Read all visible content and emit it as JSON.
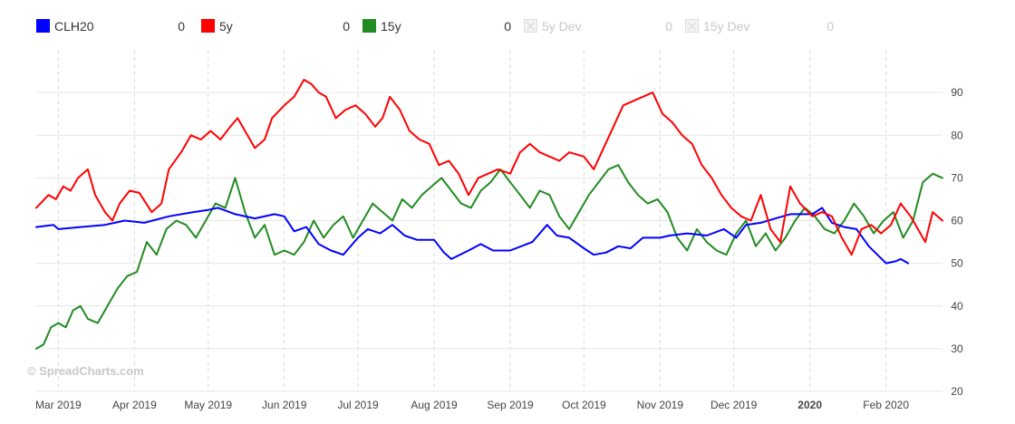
{
  "chart_data": {
    "type": "line",
    "watermark": "© SpreadCharts.com",
    "ylim": [
      20,
      100
    ],
    "y_ticks": [
      20,
      30,
      40,
      50,
      60,
      70,
      80,
      90
    ],
    "x_range": [
      "2019-02-20",
      "2020-02-24"
    ],
    "x_ticks": [
      {
        "label": "Mar 2019",
        "date": "2019-03-01",
        "bold": false
      },
      {
        "label": "Apr 2019",
        "date": "2019-04-01",
        "bold": false
      },
      {
        "label": "May 2019",
        "date": "2019-05-01",
        "bold": false
      },
      {
        "label": "Jun 2019",
        "date": "2019-06-01",
        "bold": false
      },
      {
        "label": "Jul 2019",
        "date": "2019-07-01",
        "bold": false
      },
      {
        "label": "Aug 2019",
        "date": "2019-08-01",
        "bold": false
      },
      {
        "label": "Sep 2019",
        "date": "2019-09-01",
        "bold": false
      },
      {
        "label": "Oct 2019",
        "date": "2019-10-01",
        "bold": false
      },
      {
        "label": "Nov 2019",
        "date": "2019-11-01",
        "bold": false
      },
      {
        "label": "Dec 2019",
        "date": "2019-12-01",
        "bold": false
      },
      {
        "label": "2020",
        "date": "2020-01-01",
        "bold": true
      },
      {
        "label": "Feb 2020",
        "date": "2020-02-01",
        "bold": false
      }
    ],
    "legend": [
      {
        "name": "CLH20",
        "value": "0",
        "color": "#0000ff",
        "enabled": true
      },
      {
        "name": "5y",
        "value": "0",
        "color": "#ff0000",
        "enabled": true
      },
      {
        "name": "15y",
        "value": "0",
        "color": "#228b22",
        "enabled": true
      },
      {
        "name": "5y Dev",
        "value": "0",
        "color": "#dddddd",
        "enabled": false
      },
      {
        "name": "15y Dev",
        "value": "0",
        "color": "#dddddd",
        "enabled": false
      }
    ],
    "series": [
      {
        "name": "CLH20",
        "color": "#0000ff",
        "points": [
          [
            "2019-02-20",
            58.5
          ],
          [
            "2019-02-27",
            59.0
          ],
          [
            "2019-03-01",
            58.0
          ],
          [
            "2019-03-10",
            58.5
          ],
          [
            "2019-03-20",
            59.0
          ],
          [
            "2019-03-28",
            60.0
          ],
          [
            "2019-04-05",
            59.5
          ],
          [
            "2019-04-15",
            61.0
          ],
          [
            "2019-04-25",
            62.0
          ],
          [
            "2019-05-01",
            62.5
          ],
          [
            "2019-05-05",
            63.0
          ],
          [
            "2019-05-12",
            61.5
          ],
          [
            "2019-05-20",
            60.5
          ],
          [
            "2019-05-28",
            61.5
          ],
          [
            "2019-06-01",
            61.0
          ],
          [
            "2019-06-05",
            57.5
          ],
          [
            "2019-06-10",
            58.5
          ],
          [
            "2019-06-15",
            54.5
          ],
          [
            "2019-06-20",
            53.0
          ],
          [
            "2019-06-25",
            52.0
          ],
          [
            "2019-07-01",
            56.0
          ],
          [
            "2019-07-05",
            58.0
          ],
          [
            "2019-07-10",
            57.0
          ],
          [
            "2019-07-15",
            59.0
          ],
          [
            "2019-07-20",
            56.5
          ],
          [
            "2019-07-25",
            55.5
          ],
          [
            "2019-08-01",
            55.5
          ],
          [
            "2019-08-05",
            52.5
          ],
          [
            "2019-08-08",
            51.0
          ],
          [
            "2019-08-15",
            53.0
          ],
          [
            "2019-08-20",
            54.5
          ],
          [
            "2019-08-25",
            53.0
          ],
          [
            "2019-09-01",
            53.0
          ],
          [
            "2019-09-10",
            55.0
          ],
          [
            "2019-09-16",
            59.0
          ],
          [
            "2019-09-20",
            56.5
          ],
          [
            "2019-09-25",
            56.0
          ],
          [
            "2019-10-01",
            53.5
          ],
          [
            "2019-10-05",
            52.0
          ],
          [
            "2019-10-10",
            52.5
          ],
          [
            "2019-10-15",
            54.0
          ],
          [
            "2019-10-20",
            53.5
          ],
          [
            "2019-10-25",
            56.0
          ],
          [
            "2019-11-01",
            56.0
          ],
          [
            "2019-11-05",
            56.5
          ],
          [
            "2019-11-12",
            57.0
          ],
          [
            "2019-11-20",
            56.5
          ],
          [
            "2019-11-27",
            58.0
          ],
          [
            "2019-12-02",
            56.0
          ],
          [
            "2019-12-06",
            59.0
          ],
          [
            "2019-12-12",
            59.5
          ],
          [
            "2019-12-18",
            60.5
          ],
          [
            "2019-12-24",
            61.5
          ],
          [
            "2020-01-02",
            61.5
          ],
          [
            "2020-01-06",
            63.0
          ],
          [
            "2020-01-10",
            59.5
          ],
          [
            "2020-01-15",
            58.5
          ],
          [
            "2020-01-20",
            58.0
          ],
          [
            "2020-01-25",
            54.0
          ],
          [
            "2020-02-01",
            50.0
          ],
          [
            "2020-02-05",
            50.5
          ],
          [
            "2020-02-07",
            51.0
          ],
          [
            "2020-02-10",
            50.0
          ]
        ]
      },
      {
        "name": "5y",
        "color": "#ff0000",
        "points": [
          [
            "2019-02-20",
            63.0
          ],
          [
            "2019-02-25",
            66.0
          ],
          [
            "2019-02-28",
            65.0
          ],
          [
            "2019-03-03",
            68.0
          ],
          [
            "2019-03-06",
            67.0
          ],
          [
            "2019-03-09",
            70.0
          ],
          [
            "2019-03-13",
            72.0
          ],
          [
            "2019-03-16",
            66.0
          ],
          [
            "2019-03-20",
            62.0
          ],
          [
            "2019-03-23",
            60.0
          ],
          [
            "2019-03-26",
            64.0
          ],
          [
            "2019-03-30",
            67.0
          ],
          [
            "2019-04-03",
            66.5
          ],
          [
            "2019-04-08",
            62.0
          ],
          [
            "2019-04-12",
            64.0
          ],
          [
            "2019-04-15",
            72.0
          ],
          [
            "2019-04-20",
            76.0
          ],
          [
            "2019-04-24",
            80.0
          ],
          [
            "2019-04-28",
            79.0
          ],
          [
            "2019-05-02",
            81.0
          ],
          [
            "2019-05-06",
            79.0
          ],
          [
            "2019-05-10",
            82.0
          ],
          [
            "2019-05-13",
            84.0
          ],
          [
            "2019-05-17",
            80.0
          ],
          [
            "2019-05-20",
            77.0
          ],
          [
            "2019-05-24",
            79.0
          ],
          [
            "2019-05-27",
            84.0
          ],
          [
            "2019-06-01",
            87.0
          ],
          [
            "2019-06-05",
            89.0
          ],
          [
            "2019-06-09",
            93.0
          ],
          [
            "2019-06-12",
            92.0
          ],
          [
            "2019-06-15",
            90.0
          ],
          [
            "2019-06-18",
            89.0
          ],
          [
            "2019-06-22",
            84.0
          ],
          [
            "2019-06-26",
            86.0
          ],
          [
            "2019-06-30",
            87.0
          ],
          [
            "2019-07-04",
            85.0
          ],
          [
            "2019-07-08",
            82.0
          ],
          [
            "2019-07-11",
            84.0
          ],
          [
            "2019-07-14",
            89.0
          ],
          [
            "2019-07-18",
            86.0
          ],
          [
            "2019-07-22",
            81.0
          ],
          [
            "2019-07-26",
            79.0
          ],
          [
            "2019-07-30",
            78.0
          ],
          [
            "2019-08-03",
            73.0
          ],
          [
            "2019-08-07",
            74.0
          ],
          [
            "2019-08-11",
            71.0
          ],
          [
            "2019-08-15",
            66.0
          ],
          [
            "2019-08-19",
            70.0
          ],
          [
            "2019-08-23",
            71.0
          ],
          [
            "2019-08-27",
            72.0
          ],
          [
            "2019-09-01",
            71.0
          ],
          [
            "2019-09-05",
            76.0
          ],
          [
            "2019-09-09",
            78.0
          ],
          [
            "2019-09-13",
            76.0
          ],
          [
            "2019-09-17",
            75.0
          ],
          [
            "2019-09-21",
            74.0
          ],
          [
            "2019-09-25",
            76.0
          ],
          [
            "2019-10-01",
            75.0
          ],
          [
            "2019-10-05",
            72.0
          ],
          [
            "2019-10-09",
            77.0
          ],
          [
            "2019-10-13",
            82.0
          ],
          [
            "2019-10-17",
            87.0
          ],
          [
            "2019-10-21",
            88.0
          ],
          [
            "2019-10-25",
            89.0
          ],
          [
            "2019-10-29",
            90.0
          ],
          [
            "2019-11-02",
            85.0
          ],
          [
            "2019-11-06",
            83.0
          ],
          [
            "2019-11-10",
            80.0
          ],
          [
            "2019-11-14",
            78.0
          ],
          [
            "2019-11-18",
            73.0
          ],
          [
            "2019-11-22",
            70.0
          ],
          [
            "2019-11-26",
            66.0
          ],
          [
            "2019-11-30",
            63.0
          ],
          [
            "2019-12-04",
            61.0
          ],
          [
            "2019-12-08",
            60.0
          ],
          [
            "2019-12-12",
            66.0
          ],
          [
            "2019-12-16",
            58.0
          ],
          [
            "2019-12-20",
            55.0
          ],
          [
            "2019-12-24",
            68.0
          ],
          [
            "2019-12-28",
            64.0
          ],
          [
            "2020-01-02",
            61.0
          ],
          [
            "2020-01-06",
            62.0
          ],
          [
            "2020-01-10",
            61.0
          ],
          [
            "2020-01-14",
            56.0
          ],
          [
            "2020-01-18",
            52.0
          ],
          [
            "2020-01-22",
            58.0
          ],
          [
            "2020-01-26",
            59.0
          ],
          [
            "2020-01-30",
            57.0
          ],
          [
            "2020-02-03",
            59.0
          ],
          [
            "2020-02-07",
            64.0
          ],
          [
            "2020-02-11",
            61.0
          ],
          [
            "2020-02-14",
            58.0
          ],
          [
            "2020-02-17",
            55.0
          ],
          [
            "2020-02-20",
            62.0
          ],
          [
            "2020-02-24",
            60.0
          ]
        ]
      },
      {
        "name": "15y",
        "color": "#228b22",
        "points": [
          [
            "2019-02-20",
            30.0
          ],
          [
            "2019-02-23",
            31.0
          ],
          [
            "2019-02-26",
            35.0
          ],
          [
            "2019-03-01",
            36.0
          ],
          [
            "2019-03-04",
            35.0
          ],
          [
            "2019-03-07",
            39.0
          ],
          [
            "2019-03-10",
            40.0
          ],
          [
            "2019-03-13",
            37.0
          ],
          [
            "2019-03-17",
            36.0
          ],
          [
            "2019-03-21",
            40.0
          ],
          [
            "2019-03-25",
            44.0
          ],
          [
            "2019-03-29",
            47.0
          ],
          [
            "2019-04-02",
            48.0
          ],
          [
            "2019-04-06",
            55.0
          ],
          [
            "2019-04-10",
            52.0
          ],
          [
            "2019-04-14",
            58.0
          ],
          [
            "2019-04-18",
            60.0
          ],
          [
            "2019-04-22",
            59.0
          ],
          [
            "2019-04-26",
            56.0
          ],
          [
            "2019-04-30",
            60.0
          ],
          [
            "2019-05-04",
            64.0
          ],
          [
            "2019-05-08",
            63.0
          ],
          [
            "2019-05-12",
            70.0
          ],
          [
            "2019-05-16",
            62.0
          ],
          [
            "2019-05-20",
            56.0
          ],
          [
            "2019-05-24",
            59.0
          ],
          [
            "2019-05-28",
            52.0
          ],
          [
            "2019-06-01",
            53.0
          ],
          [
            "2019-06-05",
            52.0
          ],
          [
            "2019-06-09",
            55.0
          ],
          [
            "2019-06-13",
            60.0
          ],
          [
            "2019-06-17",
            56.0
          ],
          [
            "2019-06-21",
            59.0
          ],
          [
            "2019-06-25",
            61.0
          ],
          [
            "2019-06-29",
            56.0
          ],
          [
            "2019-07-03",
            60.0
          ],
          [
            "2019-07-07",
            64.0
          ],
          [
            "2019-07-11",
            62.0
          ],
          [
            "2019-07-15",
            60.0
          ],
          [
            "2019-07-19",
            65.0
          ],
          [
            "2019-07-23",
            63.0
          ],
          [
            "2019-07-27",
            66.0
          ],
          [
            "2019-07-31",
            68.0
          ],
          [
            "2019-08-04",
            70.0
          ],
          [
            "2019-08-08",
            67.0
          ],
          [
            "2019-08-12",
            64.0
          ],
          [
            "2019-08-16",
            63.0
          ],
          [
            "2019-08-20",
            67.0
          ],
          [
            "2019-08-24",
            69.0
          ],
          [
            "2019-08-28",
            72.0
          ],
          [
            "2019-09-01",
            69.0
          ],
          [
            "2019-09-05",
            66.0
          ],
          [
            "2019-09-09",
            63.0
          ],
          [
            "2019-09-13",
            67.0
          ],
          [
            "2019-09-17",
            66.0
          ],
          [
            "2019-09-21",
            61.0
          ],
          [
            "2019-09-25",
            58.0
          ],
          [
            "2019-09-29",
            62.0
          ],
          [
            "2019-10-03",
            66.0
          ],
          [
            "2019-10-07",
            69.0
          ],
          [
            "2019-10-11",
            72.0
          ],
          [
            "2019-10-15",
            73.0
          ],
          [
            "2019-10-19",
            69.0
          ],
          [
            "2019-10-23",
            66.0
          ],
          [
            "2019-10-27",
            64.0
          ],
          [
            "2019-10-31",
            65.0
          ],
          [
            "2019-11-04",
            62.0
          ],
          [
            "2019-11-08",
            56.0
          ],
          [
            "2019-11-12",
            53.0
          ],
          [
            "2019-11-16",
            58.0
          ],
          [
            "2019-11-20",
            55.0
          ],
          [
            "2019-11-24",
            53.0
          ],
          [
            "2019-11-28",
            52.0
          ],
          [
            "2019-12-02",
            57.0
          ],
          [
            "2019-12-06",
            60.0
          ],
          [
            "2019-12-10",
            54.0
          ],
          [
            "2019-12-14",
            57.0
          ],
          [
            "2019-12-18",
            53.0
          ],
          [
            "2019-12-22",
            56.0
          ],
          [
            "2019-12-26",
            60.0
          ],
          [
            "2019-12-30",
            63.0
          ],
          [
            "2020-01-03",
            61.0
          ],
          [
            "2020-01-07",
            58.0
          ],
          [
            "2020-01-11",
            57.0
          ],
          [
            "2020-01-15",
            60.0
          ],
          [
            "2020-01-19",
            64.0
          ],
          [
            "2020-01-23",
            61.0
          ],
          [
            "2020-01-27",
            57.0
          ],
          [
            "2020-01-31",
            60.0
          ],
          [
            "2020-02-04",
            62.0
          ],
          [
            "2020-02-08",
            56.0
          ],
          [
            "2020-02-12",
            60.0
          ],
          [
            "2020-02-16",
            69.0
          ],
          [
            "2020-02-20",
            71.0
          ],
          [
            "2020-02-24",
            70.0
          ]
        ]
      }
    ]
  }
}
